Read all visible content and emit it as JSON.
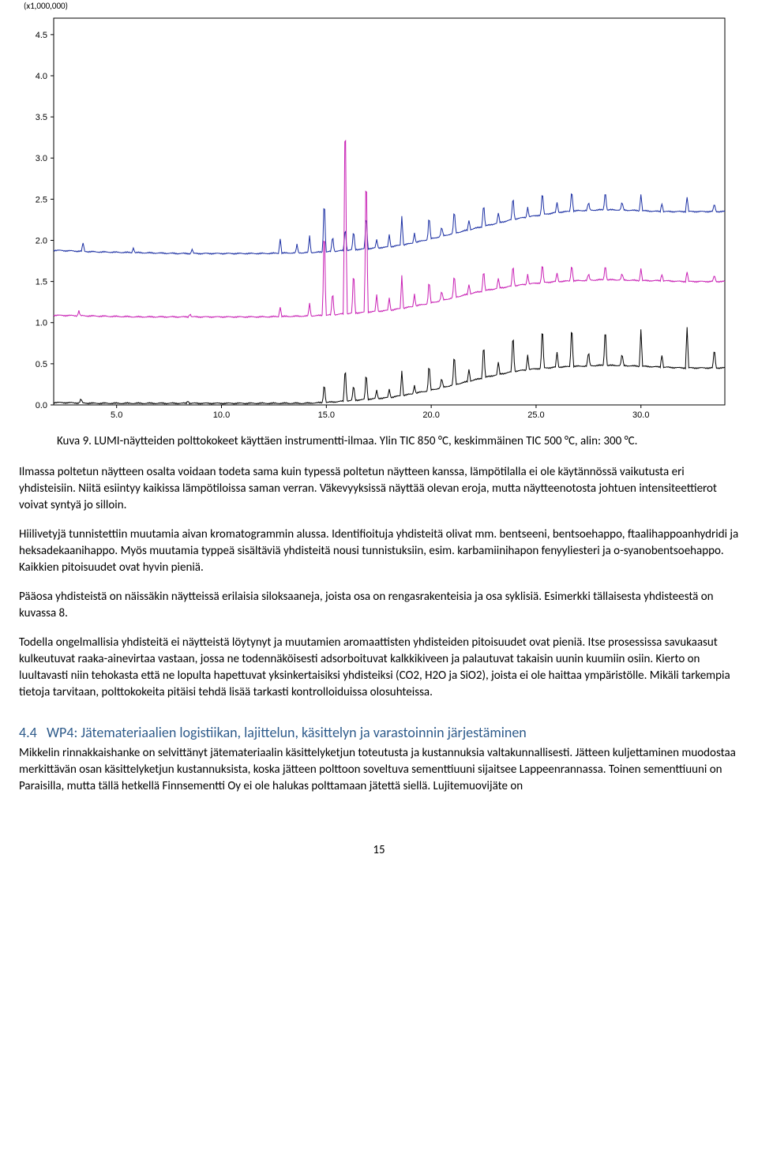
{
  "chart": {
    "type": "line",
    "scale_label": "(x1,000,000)",
    "y_ticks": [
      "4.5",
      "4.0",
      "3.5",
      "3.0",
      "2.5",
      "2.0",
      "1.5",
      "1.0",
      "0.5",
      "0.0"
    ],
    "ylim": [
      0.0,
      4.7
    ],
    "x_ticks": [
      "5.0",
      "10.0",
      "15.0",
      "20.0",
      "25.0",
      "30.0"
    ],
    "xlim": [
      2.0,
      34.0
    ],
    "background_color": "#ffffff",
    "axis_color": "#000000",
    "grid_color": "none",
    "tick_fontsize": 11,
    "series": [
      {
        "name": "TIC 850 C",
        "color": "#1b2fa3",
        "offset_y": 1.8,
        "line_width": 1,
        "baseline": [
          [
            2.0,
            0.08
          ],
          [
            4.0,
            0.06
          ],
          [
            6.0,
            0.05
          ],
          [
            8.0,
            0.04
          ],
          [
            10.0,
            0.04
          ],
          [
            12.0,
            0.04
          ],
          [
            14.0,
            0.05
          ],
          [
            15.0,
            0.06
          ],
          [
            16.0,
            0.08
          ],
          [
            17.0,
            0.1
          ],
          [
            18.0,
            0.12
          ],
          [
            19.0,
            0.16
          ],
          [
            20.0,
            0.22
          ],
          [
            21.0,
            0.28
          ],
          [
            22.0,
            0.34
          ],
          [
            23.0,
            0.4
          ],
          [
            24.0,
            0.46
          ],
          [
            25.0,
            0.5
          ],
          [
            26.0,
            0.54
          ],
          [
            27.0,
            0.56
          ],
          [
            28.0,
            0.57
          ],
          [
            29.0,
            0.57
          ],
          [
            30.0,
            0.56
          ],
          [
            31.0,
            0.55
          ],
          [
            32.0,
            0.55
          ],
          [
            33.0,
            0.55
          ],
          [
            34.0,
            0.55
          ]
        ],
        "peaks": [
          {
            "x": 3.4,
            "h": 0.1
          },
          {
            "x": 5.8,
            "h": 0.06
          },
          {
            "x": 8.6,
            "h": 0.05
          },
          {
            "x": 12.8,
            "h": 0.18
          },
          {
            "x": 13.6,
            "h": 0.1
          },
          {
            "x": 14.2,
            "h": 0.2
          },
          {
            "x": 14.9,
            "h": 0.7
          },
          {
            "x": 15.3,
            "h": 0.2
          },
          {
            "x": 15.9,
            "h": 0.3
          },
          {
            "x": 16.3,
            "h": 0.25
          },
          {
            "x": 16.9,
            "h": 0.45
          },
          {
            "x": 17.4,
            "h": 0.1
          },
          {
            "x": 18.0,
            "h": 0.15
          },
          {
            "x": 18.6,
            "h": 0.35
          },
          {
            "x": 19.2,
            "h": 0.12
          },
          {
            "x": 19.9,
            "h": 0.3
          },
          {
            "x": 20.5,
            "h": 0.12
          },
          {
            "x": 21.1,
            "h": 0.3
          },
          {
            "x": 21.8,
            "h": 0.12
          },
          {
            "x": 22.5,
            "h": 0.3
          },
          {
            "x": 23.2,
            "h": 0.12
          },
          {
            "x": 23.9,
            "h": 0.3
          },
          {
            "x": 24.6,
            "h": 0.12
          },
          {
            "x": 25.3,
            "h": 0.3
          },
          {
            "x": 26.0,
            "h": 0.12
          },
          {
            "x": 26.7,
            "h": 0.28
          },
          {
            "x": 27.5,
            "h": 0.1
          },
          {
            "x": 28.3,
            "h": 0.25
          },
          {
            "x": 29.1,
            "h": 0.1
          },
          {
            "x": 30.0,
            "h": 0.2
          },
          {
            "x": 31.0,
            "h": 0.1
          },
          {
            "x": 32.2,
            "h": 0.18
          },
          {
            "x": 33.5,
            "h": 0.1
          }
        ]
      },
      {
        "name": "TIC 500 C",
        "color": "#c81fb4",
        "offset_y": 1.05,
        "line_width": 1,
        "baseline": [
          [
            2.0,
            0.04
          ],
          [
            4.0,
            0.03
          ],
          [
            6.0,
            0.02
          ],
          [
            8.0,
            0.02
          ],
          [
            10.0,
            0.02
          ],
          [
            12.0,
            0.02
          ],
          [
            14.0,
            0.03
          ],
          [
            15.0,
            0.04
          ],
          [
            16.0,
            0.06
          ],
          [
            17.0,
            0.08
          ],
          [
            18.0,
            0.1
          ],
          [
            19.0,
            0.14
          ],
          [
            20.0,
            0.19
          ],
          [
            21.0,
            0.25
          ],
          [
            22.0,
            0.31
          ],
          [
            23.0,
            0.36
          ],
          [
            24.0,
            0.4
          ],
          [
            25.0,
            0.43
          ],
          [
            26.0,
            0.45
          ],
          [
            27.0,
            0.46
          ],
          [
            28.0,
            0.47
          ],
          [
            29.0,
            0.47
          ],
          [
            30.0,
            0.46
          ],
          [
            31.0,
            0.46
          ],
          [
            32.0,
            0.45
          ],
          [
            33.0,
            0.45
          ],
          [
            34.0,
            0.45
          ]
        ],
        "peaks": [
          {
            "x": 3.2,
            "h": 0.06
          },
          {
            "x": 8.5,
            "h": 0.04
          },
          {
            "x": 12.8,
            "h": 0.12
          },
          {
            "x": 14.2,
            "h": 0.15
          },
          {
            "x": 14.9,
            "h": 1.2
          },
          {
            "x": 15.3,
            "h": 0.3
          },
          {
            "x": 15.9,
            "h": 2.8
          },
          {
            "x": 16.3,
            "h": 0.55
          },
          {
            "x": 16.9,
            "h": 1.95
          },
          {
            "x": 17.4,
            "h": 0.2
          },
          {
            "x": 18.0,
            "h": 0.15
          },
          {
            "x": 18.6,
            "h": 0.4
          },
          {
            "x": 19.2,
            "h": 0.15
          },
          {
            "x": 19.9,
            "h": 0.3
          },
          {
            "x": 20.5,
            "h": 0.12
          },
          {
            "x": 21.1,
            "h": 0.3
          },
          {
            "x": 21.8,
            "h": 0.12
          },
          {
            "x": 22.5,
            "h": 0.28
          },
          {
            "x": 23.2,
            "h": 0.12
          },
          {
            "x": 23.9,
            "h": 0.28
          },
          {
            "x": 24.6,
            "h": 0.12
          },
          {
            "x": 25.3,
            "h": 0.25
          },
          {
            "x": 26.0,
            "h": 0.1
          },
          {
            "x": 26.7,
            "h": 0.22
          },
          {
            "x": 27.5,
            "h": 0.08
          },
          {
            "x": 28.3,
            "h": 0.2
          },
          {
            "x": 29.1,
            "h": 0.08
          },
          {
            "x": 30.0,
            "h": 0.15
          },
          {
            "x": 31.0,
            "h": 0.08
          },
          {
            "x": 32.2,
            "h": 0.12
          },
          {
            "x": 33.5,
            "h": 0.08
          }
        ]
      },
      {
        "name": "TIC 300 C",
        "color": "#000000",
        "offset_y": 0.0,
        "line_width": 1,
        "baseline": [
          [
            2.0,
            0.03
          ],
          [
            4.0,
            0.02
          ],
          [
            6.0,
            0.02
          ],
          [
            8.0,
            0.02
          ],
          [
            10.0,
            0.02
          ],
          [
            12.0,
            0.02
          ],
          [
            14.0,
            0.02
          ],
          [
            15.0,
            0.03
          ],
          [
            16.0,
            0.05
          ],
          [
            17.0,
            0.07
          ],
          [
            18.0,
            0.09
          ],
          [
            19.0,
            0.13
          ],
          [
            20.0,
            0.18
          ],
          [
            21.0,
            0.24
          ],
          [
            22.0,
            0.3
          ],
          [
            23.0,
            0.36
          ],
          [
            24.0,
            0.41
          ],
          [
            25.0,
            0.44
          ],
          [
            26.0,
            0.46
          ],
          [
            27.0,
            0.47
          ],
          [
            28.0,
            0.48
          ],
          [
            29.0,
            0.48
          ],
          [
            30.0,
            0.47
          ],
          [
            31.0,
            0.46
          ],
          [
            32.0,
            0.45
          ],
          [
            33.0,
            0.45
          ],
          [
            34.0,
            0.45
          ]
        ],
        "peaks": [
          {
            "x": 3.3,
            "h": 0.05
          },
          {
            "x": 8.4,
            "h": 0.03
          },
          {
            "x": 14.9,
            "h": 0.25
          },
          {
            "x": 15.9,
            "h": 0.45
          },
          {
            "x": 16.3,
            "h": 0.2
          },
          {
            "x": 16.9,
            "h": 0.35
          },
          {
            "x": 17.4,
            "h": 0.1
          },
          {
            "x": 18.0,
            "h": 0.1
          },
          {
            "x": 18.6,
            "h": 0.3
          },
          {
            "x": 19.2,
            "h": 0.1
          },
          {
            "x": 19.9,
            "h": 0.35
          },
          {
            "x": 20.5,
            "h": 0.12
          },
          {
            "x": 21.1,
            "h": 0.4
          },
          {
            "x": 21.8,
            "h": 0.15
          },
          {
            "x": 22.5,
            "h": 0.45
          },
          {
            "x": 23.2,
            "h": 0.15
          },
          {
            "x": 23.9,
            "h": 0.5
          },
          {
            "x": 24.6,
            "h": 0.18
          },
          {
            "x": 25.3,
            "h": 0.55
          },
          {
            "x": 26.0,
            "h": 0.18
          },
          {
            "x": 26.7,
            "h": 0.55
          },
          {
            "x": 27.5,
            "h": 0.18
          },
          {
            "x": 28.3,
            "h": 0.5
          },
          {
            "x": 29.1,
            "h": 0.15
          },
          {
            "x": 30.0,
            "h": 0.45
          },
          {
            "x": 31.0,
            "h": 0.15
          },
          {
            "x": 32.2,
            "h": 0.5
          },
          {
            "x": 33.5,
            "h": 0.25
          }
        ]
      }
    ]
  },
  "caption": "Kuva 9. LUMI-näytteiden polttokokeet käyttäen instrumentti-ilmaa. Ylin TIC 850 °C, keskimmäinen TIC 500 °C, alin: 300 °C.",
  "para1": "Ilmassa poltetun näytteen osalta voidaan todeta sama kuin typessä poltetun näytteen kanssa, lämpötilalla ei ole käytännössä vaikutusta eri yhdisteisiin. Niitä esiintyy kaikissa lämpötiloissa saman verran. Väkevyyksissä näyttää olevan eroja, mutta näytteenotosta johtuen intensiteettierot voivat syntyä jo silloin.",
  "para2": "Hiilivetyjä tunnistettiin muutamia aivan kromatogrammin alussa. Identifioituja yhdisteitä olivat mm. bentseeni, bentsoehappo, ftaalihappoanhydridi ja heksadekaanihappo. Myös muutamia typpeä sisältäviä yhdisteitä nousi tunnistuksiin, esim. karbamiinihapon fenyyliesteri ja o-syanobentsoehappo. Kaikkien pitoisuudet ovat hyvin pieniä.",
  "para3": "Pääosa yhdisteistä on näissäkin näytteissä erilaisia siloksaaneja, joista osa on rengasrakenteisia ja osa syklisiä. Esimerkki tällaisesta yhdisteestä on kuvassa 8.",
  "para4": "Todella ongelmallisia yhdisteitä ei näytteistä löytynyt ja muutamien aromaattisten yhdisteiden pitoisuudet ovat pieniä. Itse prosessissa savukaasut kulkeutuvat raaka-ainevirtaa vastaan, jossa ne todennäköisesti adsorboituvat kalkkikiveen ja palautuvat takaisin uunin kuumiin osiin. Kierto on luultavasti niin tehokasta että ne lopulta hapettuvat yksinkertaisiksi yhdisteiksi (CO2, H2O ja SiO2), joista ei ole haittaa ympäristölle. Mikäli tarkempia tietoja tarvitaan, polttokokeita pitäisi tehdä lisää tarkasti kontrolloiduissa olosuhteissa.",
  "section": {
    "num": "4.4",
    "title": "WP4: Jätemateriaalien logistiikan, lajittelun, käsittelyn ja varastoinnin järjestäminen"
  },
  "para5": "Mikkelin rinnakkaishanke on selvittänyt jätemateriaalin käsittelyketjun toteutusta ja kustannuksia valtakunnallisesti. Jätteen kuljettaminen muodostaa merkittävän osan käsittelyketjun kustannuksista, koska jätteen polttoon soveltuva sementtiuuni sijaitsee Lappeenrannassa. Toinen sementtiuuni on Paraisilla, mutta tällä hetkellä Finnsementti Oy ei ole halukas polttamaan jätettä siellä. Lujitemuovijäte on",
  "page_number": "15",
  "colors": {
    "section_color": "#2e5b8b"
  }
}
